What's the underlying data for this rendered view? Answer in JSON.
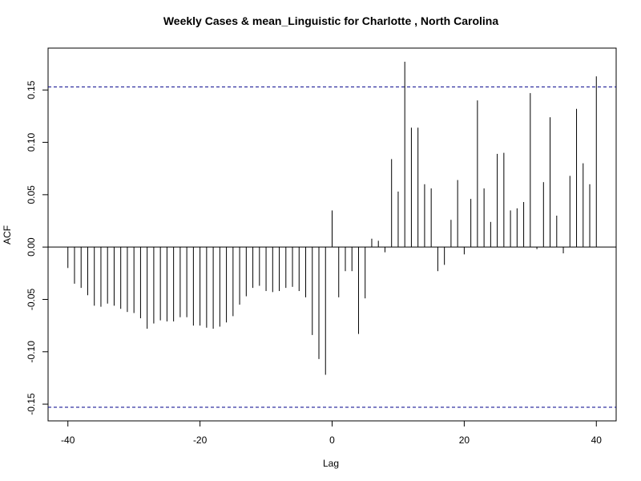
{
  "chart_data": {
    "type": "bar",
    "title": "Weekly Cases & mean_Linguistic for Charlotte , North Carolina",
    "xlabel": "Lag",
    "ylabel": "ACF",
    "xlim": [
      -43,
      43
    ],
    "ylim": [
      -0.166,
      0.19
    ],
    "x_ticks": [
      -40,
      -20,
      0,
      20,
      40
    ],
    "x_tick_labels": [
      "-40",
      "-20",
      "0",
      "20",
      "40"
    ],
    "y_ticks": [
      -0.15,
      -0.1,
      -0.05,
      0.0,
      0.05,
      0.1,
      0.15
    ],
    "y_tick_labels": [
      "-0.15",
      "-0.10",
      "-0.05",
      "0.00",
      "0.05",
      "0.10",
      "0.15"
    ],
    "confidence_bounds": [
      0.153,
      -0.153
    ],
    "zero_line": true,
    "grid": false,
    "colors": {
      "spike": "#000000",
      "bounds": "#00008b",
      "frame": "#000000"
    },
    "x": [
      -40,
      -39,
      -38,
      -37,
      -36,
      -35,
      -34,
      -33,
      -32,
      -31,
      -30,
      -29,
      -28,
      -27,
      -26,
      -25,
      -24,
      -23,
      -22,
      -21,
      -20,
      -19,
      -18,
      -17,
      -16,
      -15,
      -14,
      -13,
      -12,
      -11,
      -10,
      -9,
      -8,
      -7,
      -6,
      -5,
      -4,
      -3,
      -2,
      -1,
      0,
      1,
      2,
      3,
      4,
      5,
      6,
      7,
      8,
      9,
      10,
      11,
      12,
      13,
      14,
      15,
      16,
      17,
      18,
      19,
      20,
      21,
      22,
      23,
      24,
      25,
      26,
      27,
      28,
      29,
      30,
      31,
      32,
      33,
      34,
      35,
      36,
      37,
      38,
      39,
      40
    ],
    "values": [
      -0.02,
      -0.035,
      -0.039,
      -0.046,
      -0.056,
      -0.057,
      -0.054,
      -0.056,
      -0.059,
      -0.062,
      -0.063,
      -0.068,
      -0.078,
      -0.073,
      -0.07,
      -0.071,
      -0.071,
      -0.067,
      -0.067,
      -0.075,
      -0.075,
      -0.077,
      -0.078,
      -0.076,
      -0.072,
      -0.066,
      -0.055,
      -0.047,
      -0.039,
      -0.037,
      -0.042,
      -0.043,
      -0.042,
      -0.039,
      -0.038,
      -0.042,
      -0.048,
      -0.084,
      -0.107,
      -0.122,
      0.035,
      -0.048,
      -0.023,
      -0.023,
      -0.083,
      -0.049,
      0.008,
      0.006,
      -0.005,
      0.084,
      0.053,
      0.177,
      0.114,
      0.114,
      0.06,
      0.056,
      -0.023,
      -0.017,
      0.026,
      0.064,
      -0.007,
      0.046,
      0.14,
      0.056,
      0.024,
      0.089,
      0.09,
      0.035,
      0.037,
      0.043,
      0.147,
      -0.002,
      0.062,
      0.124,
      0.03,
      -0.006,
      0.068,
      0.132,
      0.08,
      0.06,
      0.163
    ]
  }
}
